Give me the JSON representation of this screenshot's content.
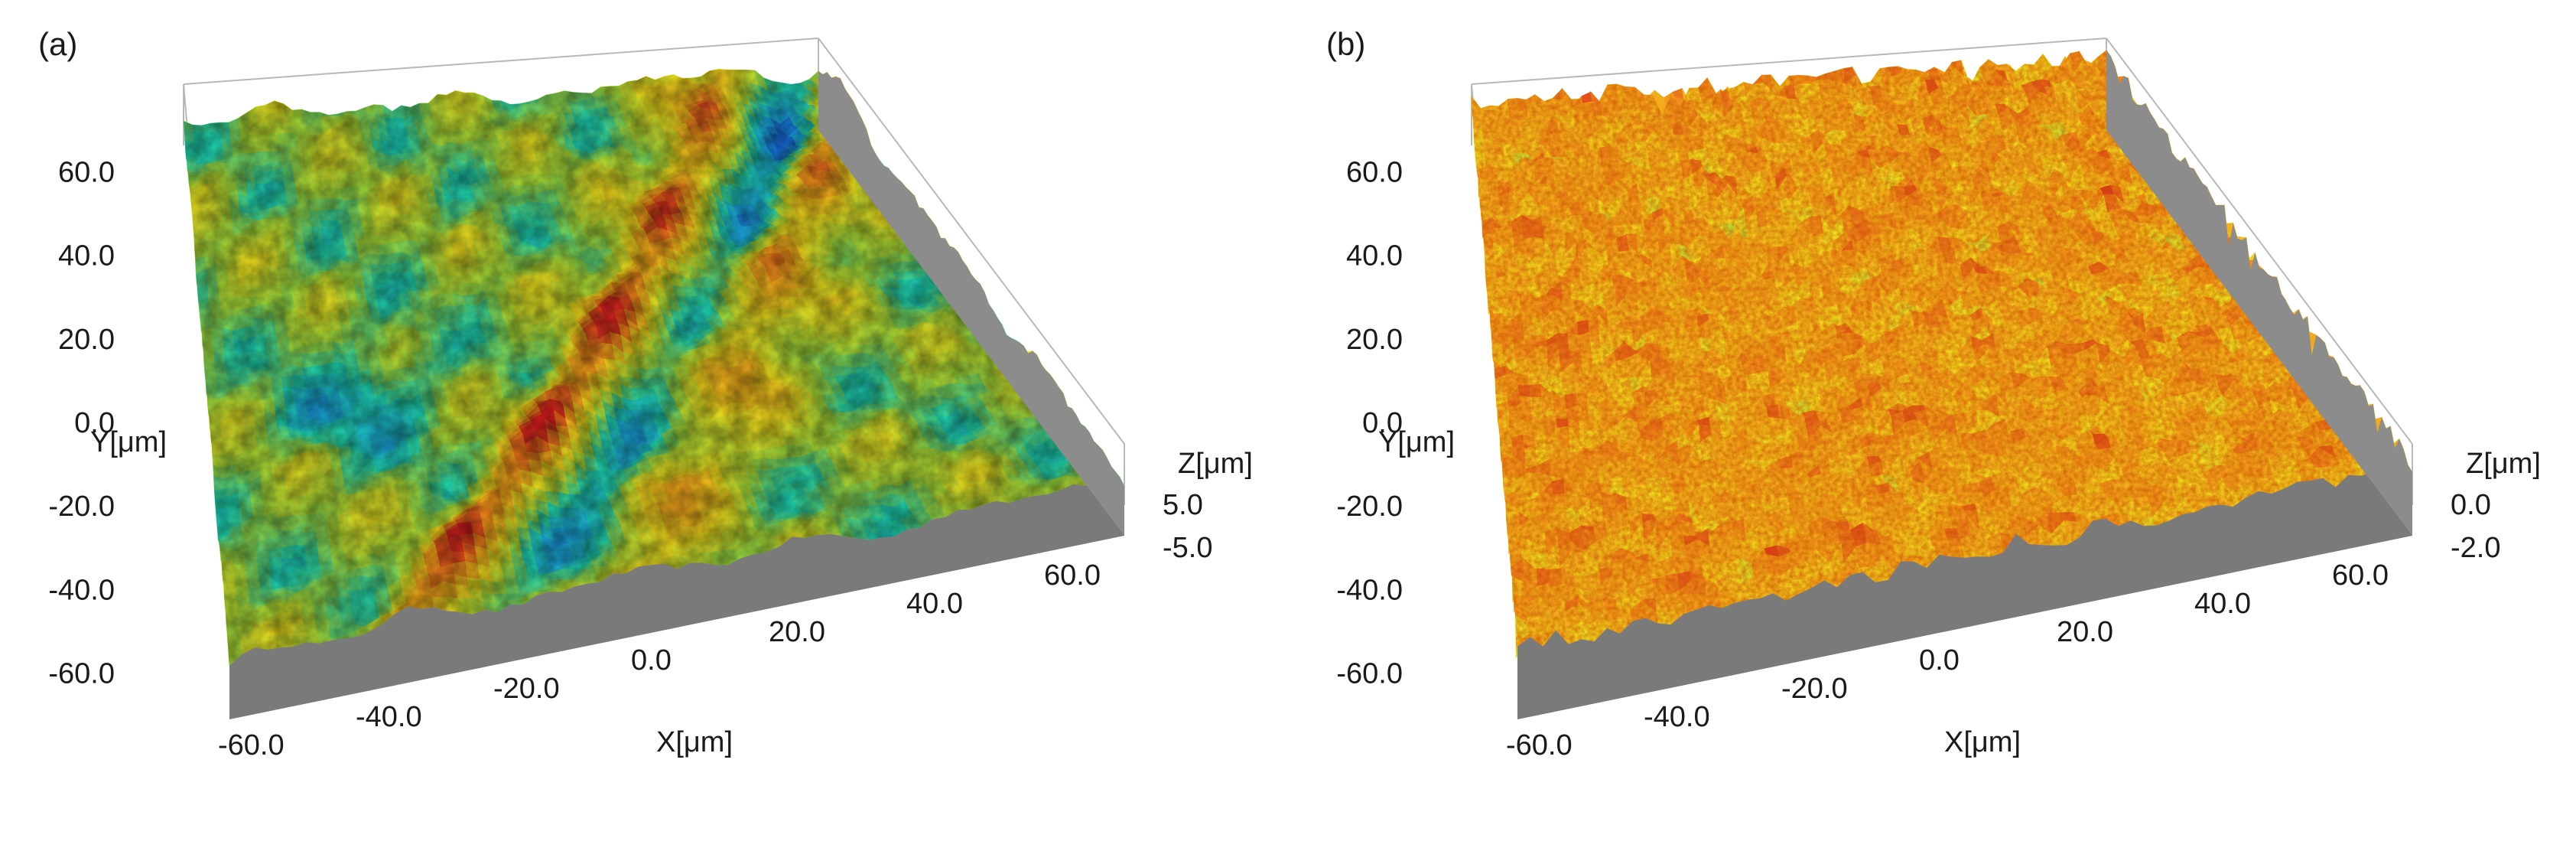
{
  "chart_data": [
    {
      "type": "surface",
      "panel_label": "(a)",
      "xlabel": "X[μm]",
      "ylabel": "Y[μm]",
      "zlabel": "Z[μm]",
      "x_ticks": [
        "-60.0",
        "-40.0",
        "-20.0",
        "0.0",
        "20.0",
        "40.0",
        "60.0"
      ],
      "y_ticks": [
        "-60.0",
        "-40.0",
        "-20.0",
        "0.0",
        "20.0",
        "40.0",
        "60.0"
      ],
      "z_ticks": [
        "5.0",
        "-5.0"
      ],
      "xlim": [
        -65,
        65
      ],
      "ylim": [
        -65,
        65
      ],
      "zlim": [
        -5,
        5
      ],
      "colormap": [
        "#1436c8",
        "#1aa6e0",
        "#1fd6b0",
        "#a8e03a",
        "#f2e21e",
        "#f29a1a",
        "#d81e1e"
      ],
      "base_color": "#7a7a7a",
      "frame_color": "#b8b8b8",
      "description_features": "two raised diagonal ridges running front-left to back-right with blue depressions between them"
    },
    {
      "type": "surface",
      "panel_label": "(b)",
      "xlabel": "X[μm]",
      "ylabel": "Y[μm]",
      "zlabel": "Z[μm]",
      "x_ticks": [
        "-60.0",
        "-40.0",
        "-20.0",
        "0.0",
        "20.0",
        "40.0",
        "60.0"
      ],
      "y_ticks": [
        "-60.0",
        "-40.0",
        "-20.0",
        "0.0",
        "20.0",
        "40.0",
        "60.0"
      ],
      "z_ticks": [
        "0.0",
        "-2.0"
      ],
      "xlim": [
        -65,
        65
      ],
      "ylim": [
        -65,
        65
      ],
      "zlim": [
        -2,
        0
      ],
      "colormap": [
        "#1436c8",
        "#1aa6e0",
        "#1fd6b0",
        "#a8e03a",
        "#f2e21e",
        "#f29a1a",
        "#d81e1e"
      ],
      "base_color": "#7a7a7a",
      "frame_color": "#b8b8b8"
    }
  ]
}
